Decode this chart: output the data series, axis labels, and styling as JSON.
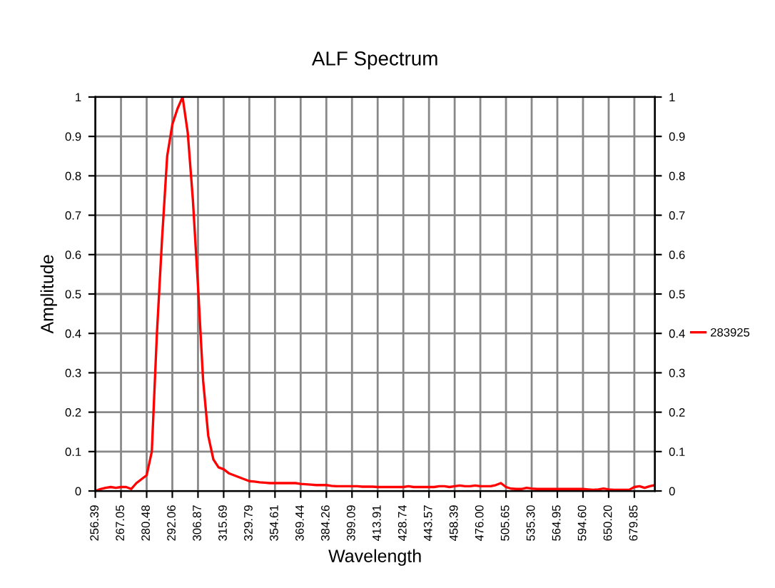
{
  "chart_data": {
    "type": "line",
    "title": "ALF Spectrum",
    "xlabel": "Wavelength",
    "ylabel": "Amplitude",
    "categories": [
      "256.39",
      null,
      null,
      null,
      null,
      "267.05",
      null,
      null,
      null,
      null,
      "280.48",
      null,
      null,
      null,
      null,
      "292.06",
      null,
      null,
      null,
      null,
      "306.87",
      null,
      null,
      null,
      null,
      "315.69",
      null,
      null,
      null,
      null,
      "329.79",
      null,
      null,
      null,
      null,
      "354.61",
      null,
      null,
      null,
      null,
      "369.44",
      null,
      null,
      null,
      null,
      "384.26",
      null,
      null,
      null,
      null,
      "399.09",
      null,
      null,
      null,
      null,
      "413.91",
      null,
      null,
      null,
      null,
      "428.74",
      null,
      null,
      null,
      null,
      "443.57",
      null,
      null,
      null,
      null,
      "458.39",
      null,
      null,
      null,
      null,
      "476.00",
      null,
      null,
      null,
      null,
      "505.65",
      null,
      null,
      null,
      null,
      "535.30",
      null,
      null,
      null,
      null,
      "564.95",
      null,
      null,
      null,
      null,
      "594.60",
      null,
      null,
      null,
      null,
      "650.20",
      null,
      null,
      null,
      null,
      "679.85",
      null,
      null,
      null,
      null
    ],
    "series": [
      {
        "name": "283925",
        "color": "#ff0000",
        "values": [
          0,
          0.005,
          0.008,
          0.01,
          0.008,
          0.01,
          0.01,
          0.005,
          0.02,
          0.03,
          0.04,
          0.1,
          0.4,
          0.64,
          0.85,
          0.93,
          0.97,
          1.0,
          0.91,
          0.74,
          0.52,
          0.28,
          0.14,
          0.08,
          0.06,
          0.055,
          0.045,
          0.04,
          0.035,
          0.03,
          0.025,
          0.024,
          0.022,
          0.021,
          0.02,
          0.02,
          0.02,
          0.02,
          0.02,
          0.02,
          0.018,
          0.017,
          0.016,
          0.015,
          0.015,
          0.015,
          0.013,
          0.012,
          0.012,
          0.012,
          0.012,
          0.012,
          0.011,
          0.011,
          0.011,
          0.01,
          0.01,
          0.01,
          0.01,
          0.01,
          0.01,
          0.012,
          0.01,
          0.01,
          0.01,
          0.01,
          0.01,
          0.012,
          0.012,
          0.01,
          0.012,
          0.014,
          0.012,
          0.012,
          0.014,
          0.012,
          0.012,
          0.012,
          0.015,
          0.02,
          0.01,
          0.006,
          0.005,
          0.005,
          0.008,
          0.006,
          0.005,
          0.005,
          0.005,
          0.005,
          0.005,
          0.005,
          0.005,
          0.005,
          0.005,
          0.005,
          0.004,
          0.003,
          0.004,
          0.006,
          0.004,
          0.003,
          0.003,
          0.003,
          0.003,
          0.01,
          0.012,
          0.008,
          0.012,
          0.015
        ]
      }
    ],
    "ylim": [
      0,
      1
    ],
    "yticks": [
      0,
      0.1,
      0.2,
      0.3,
      0.4,
      0.5,
      0.6,
      0.7,
      0.8,
      0.9,
      1
    ],
    "y2lim": [
      0,
      1
    ],
    "y2ticks": [
      0,
      0.1,
      0.2,
      0.3,
      0.4,
      0.5,
      0.6,
      0.7,
      0.8,
      0.9,
      1
    ],
    "grid": true,
    "legend": "right",
    "marker": "none",
    "line_style": "solid"
  }
}
